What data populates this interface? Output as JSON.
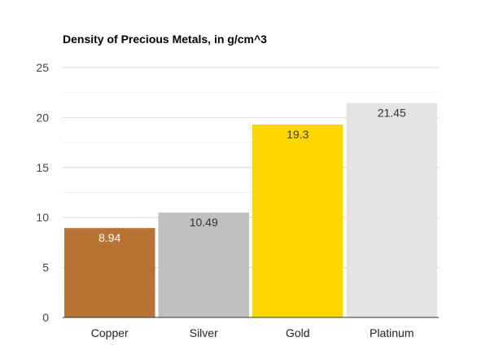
{
  "chart_data": {
    "type": "bar",
    "title": "Density of Precious Metals, in g/cm^3",
    "xlabel": "",
    "ylabel": "",
    "categories": [
      "Copper",
      "Silver",
      "Gold",
      "Platinum"
    ],
    "values": [
      8.94,
      10.49,
      19.3,
      21.45
    ],
    "data_labels": [
      "8.94",
      "10.49",
      "19.3",
      "21.45"
    ],
    "bar_colors": [
      "#b87333",
      "#c0c0c0",
      "#ffd700",
      "#e5e4e2"
    ],
    "label_colors": [
      "#ffffff",
      "#333333",
      "#333333",
      "#333333"
    ],
    "ylim": [
      0,
      25
    ],
    "yticks": [
      0,
      5,
      10,
      15,
      20,
      25
    ],
    "ytick_labels": [
      "0",
      "5",
      "10",
      "15",
      "20",
      "25"
    ],
    "grid": true,
    "legend": "none"
  }
}
